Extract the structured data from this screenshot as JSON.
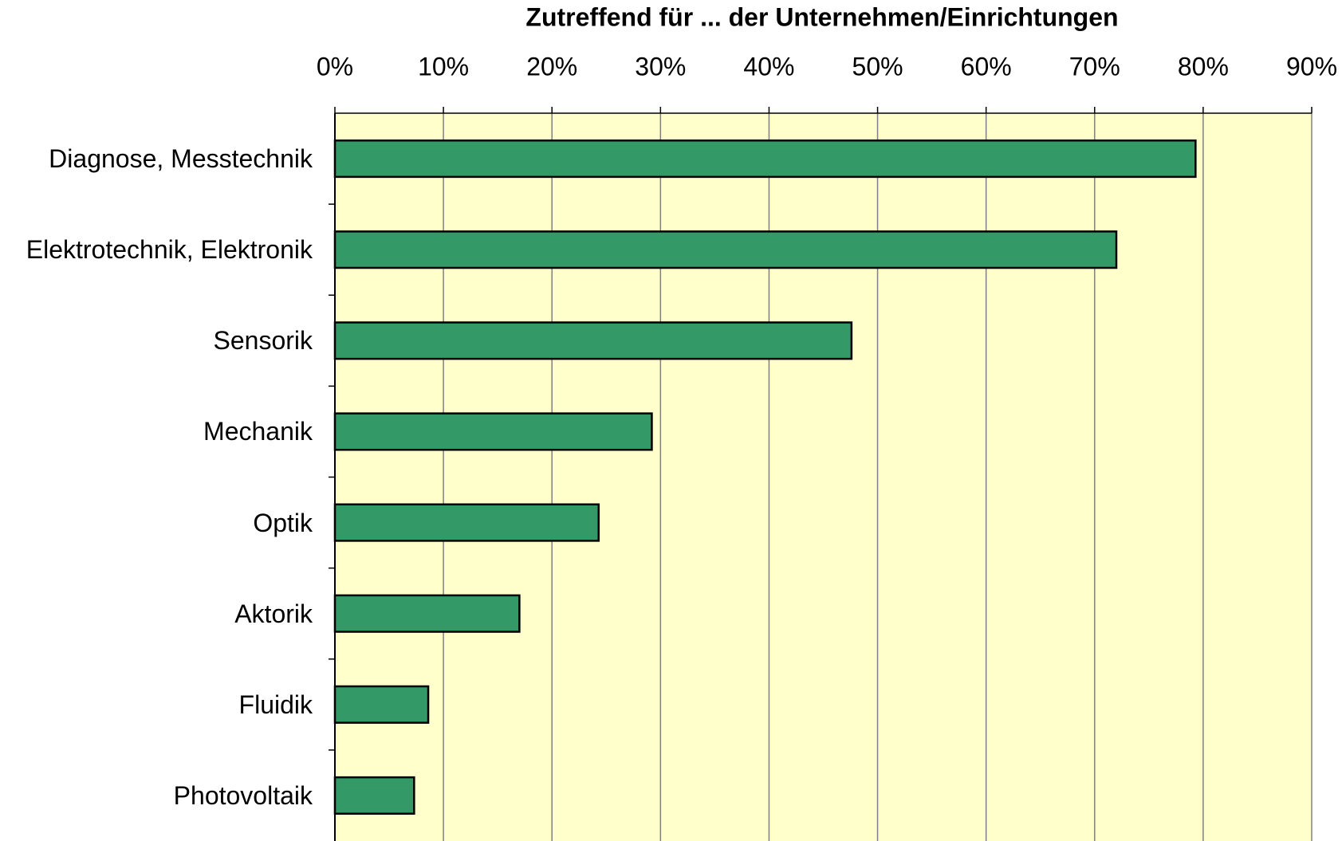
{
  "chart_data": {
    "type": "bar",
    "orientation": "horizontal",
    "title": "Zutreffend für ... der Unternehmen/Einrichtungen",
    "categories": [
      "Diagnose, Messtechnik",
      "Elektrotechnik, Elektronik",
      "Sensorik",
      "Mechanik",
      "Optik",
      "Aktorik",
      "Fluidik",
      "Photovoltaik"
    ],
    "values": [
      79.3,
      72.0,
      47.6,
      29.2,
      24.3,
      17.0,
      8.6,
      7.3
    ],
    "color": "#339966",
    "xlim": [
      0,
      90
    ],
    "xticks": [
      {
        "value": 0,
        "label": "0%"
      },
      {
        "value": 10,
        "label": "10%"
      },
      {
        "value": 20,
        "label": "20%"
      },
      {
        "value": 30,
        "label": "30%"
      },
      {
        "value": 40,
        "label": "40%"
      },
      {
        "value": 50,
        "label": "50%"
      },
      {
        "value": 60,
        "label": "60%"
      },
      {
        "value": 70,
        "label": "70%"
      },
      {
        "value": 80,
        "label": "80%"
      },
      {
        "value": 90,
        "label": "90%"
      }
    ],
    "grid": true
  }
}
